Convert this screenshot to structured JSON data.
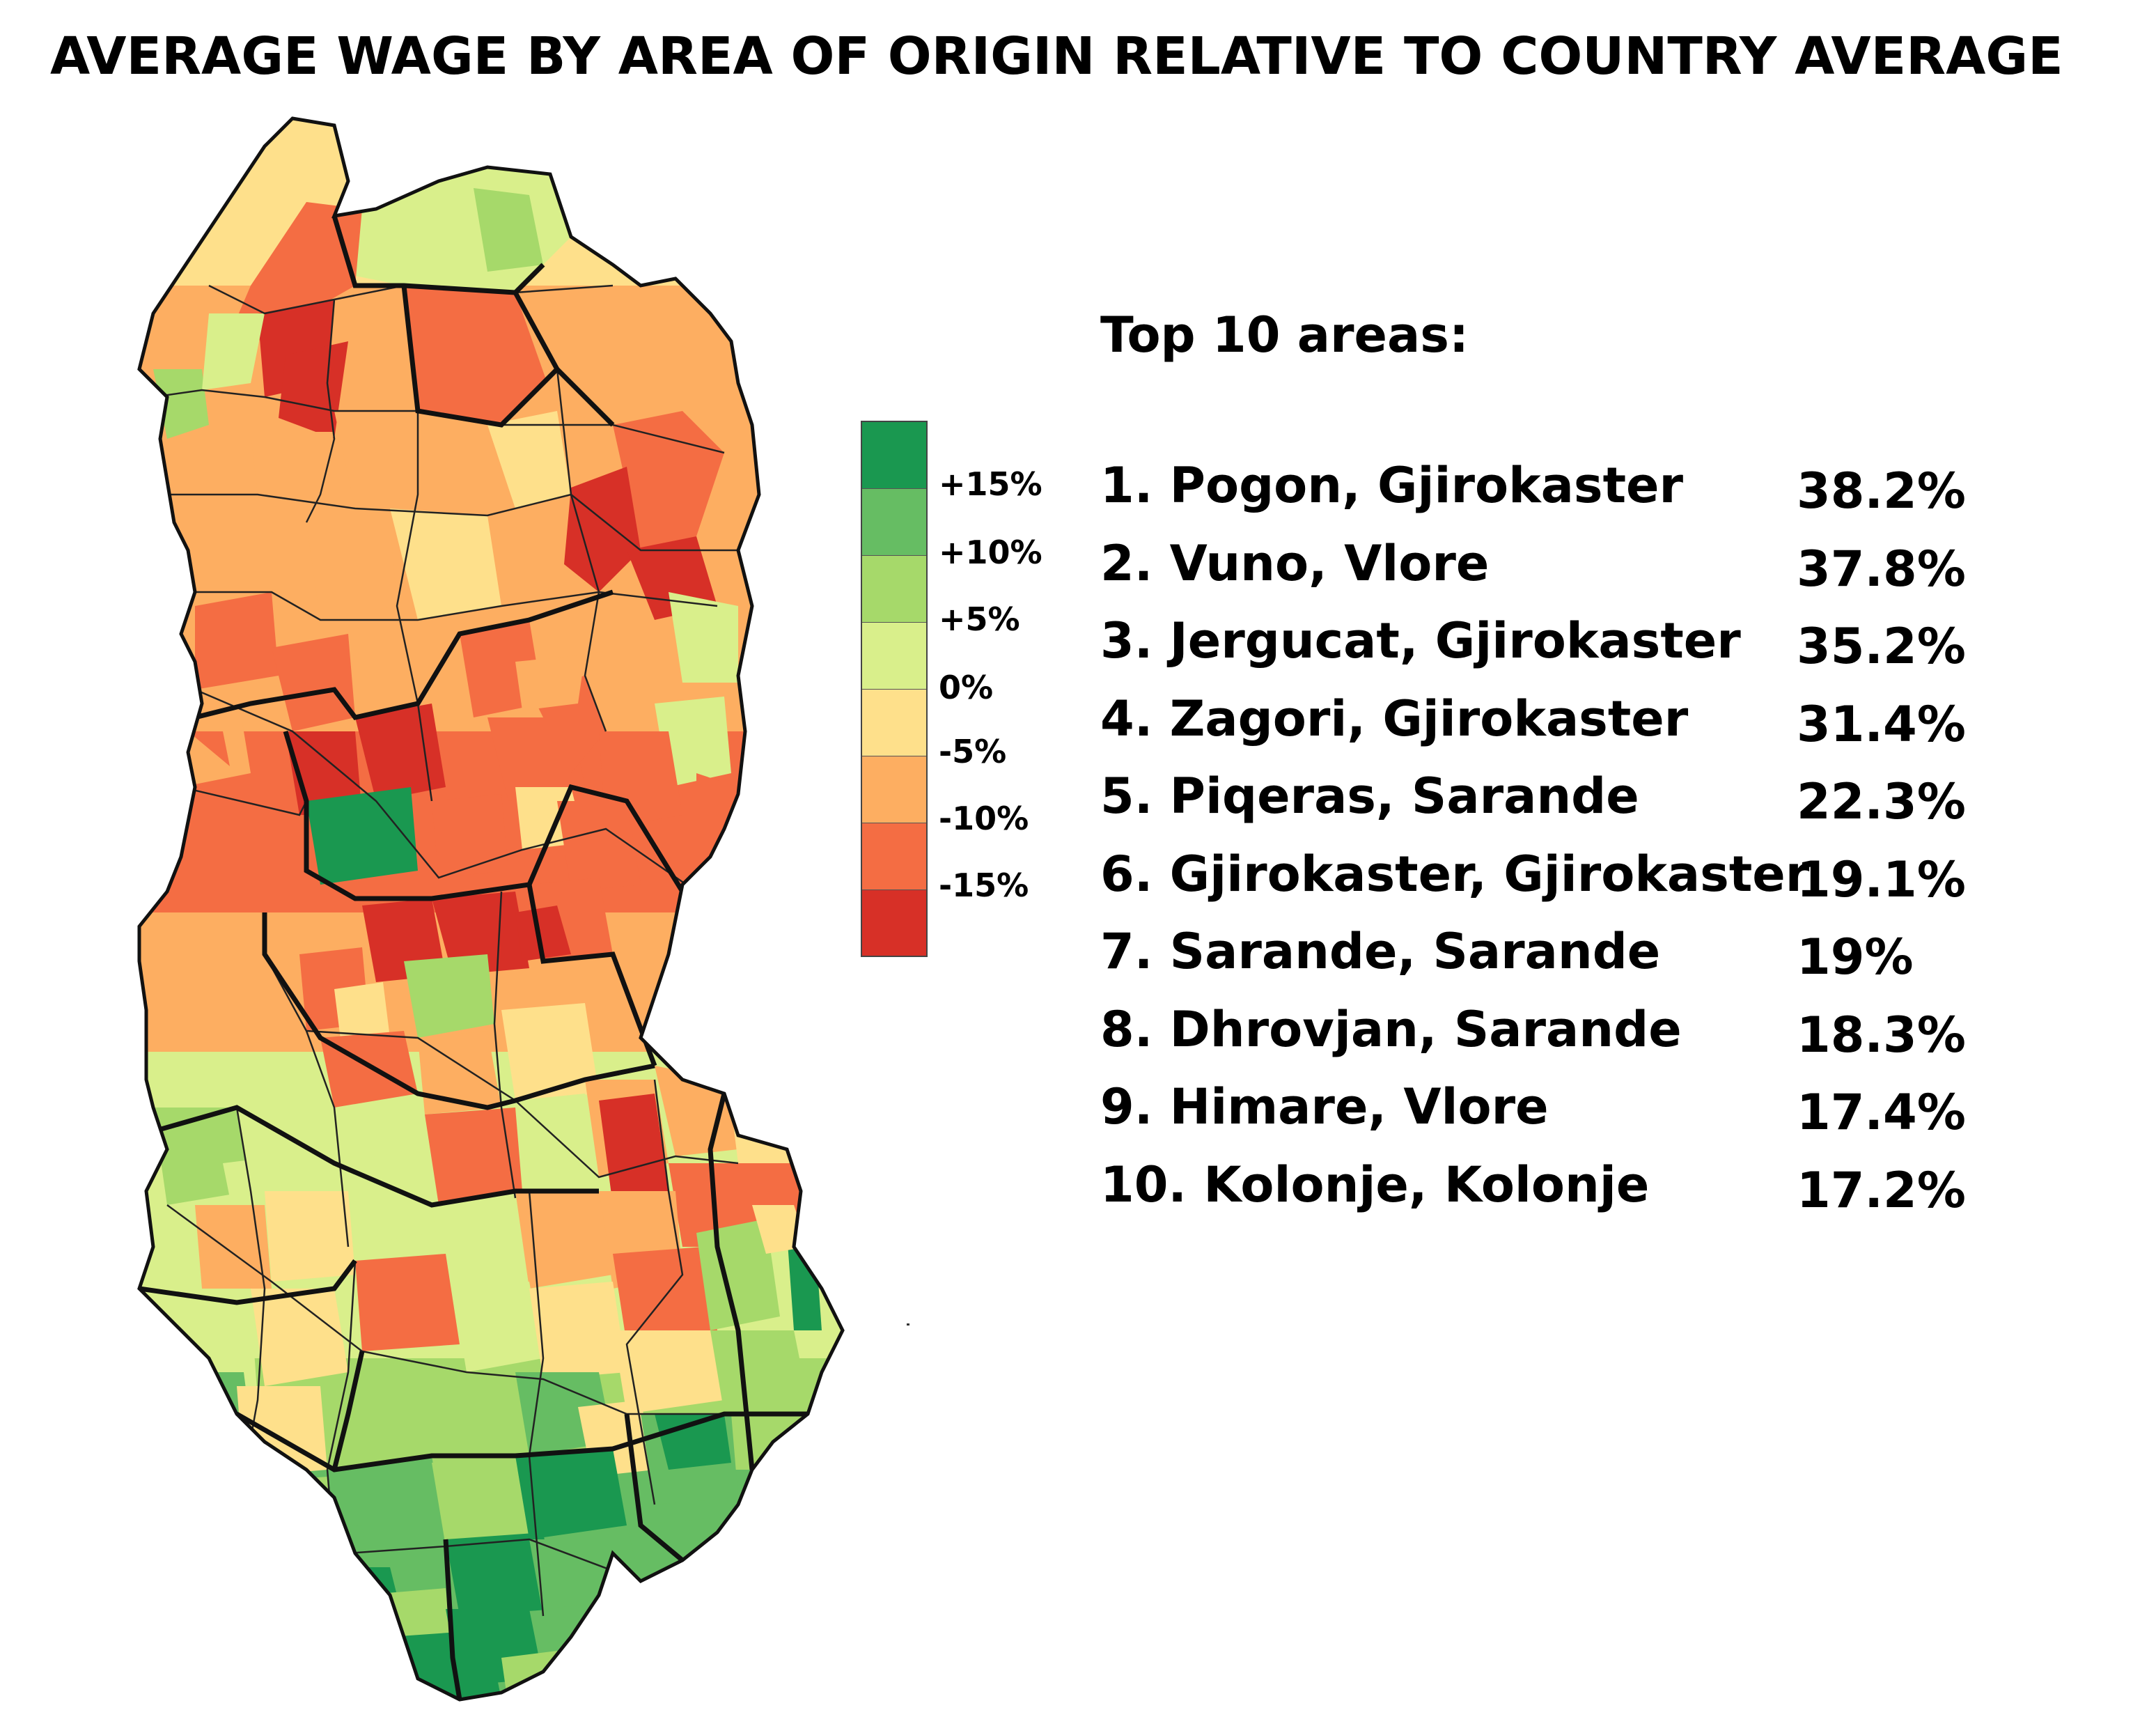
{
  "title": "AVERAGE WAGE BY AREA OF ORIGIN RELATIVE TO COUNTRY AVERAGE",
  "legend": {
    "items": [
      {
        "label": "+15%",
        "color": "#1a9850"
      },
      {
        "label": "+10%",
        "color": "#66bd63"
      },
      {
        "label": "+5%",
        "color": "#a6d96a"
      },
      {
        "label": "0%",
        "color": "#d9ef8b"
      },
      {
        "label": "-5%",
        "color": "#fee08b"
      },
      {
        "label": "-10%",
        "color": "#fdae61"
      },
      {
        "label": "-15%",
        "color": "#f46d43"
      }
    ],
    "extra_colors": {
      "bottom": "#d73027"
    }
  },
  "top10": {
    "heading": "Top 10 areas:",
    "items": [
      {
        "name": "1. Pogon, Gjirokaster",
        "value": "38.2%"
      },
      {
        "name": "2. Vuno, Vlore",
        "value": "37.8%"
      },
      {
        "name": "3. Jergucat, Gjirokaster",
        "value": "35.2%"
      },
      {
        "name": "4. Zagori, Gjirokaster",
        "value": "31.4%"
      },
      {
        "name": "5. Piqeras, Sarande",
        "value": "22.3%"
      },
      {
        "name": "6. Gjirokaster, Gjirokaster",
        "value": "19.1%"
      },
      {
        "name": "7. Sarande, Sarande",
        "value": "19%"
      },
      {
        "name": "8. Dhrovjan, Sarande",
        "value": "18.3%"
      },
      {
        "name": "9. Himare, Vlore",
        "value": "17.4%"
      },
      {
        "name": "10. Kolonje, Kolonje",
        "value": "17.2%"
      }
    ]
  }
}
